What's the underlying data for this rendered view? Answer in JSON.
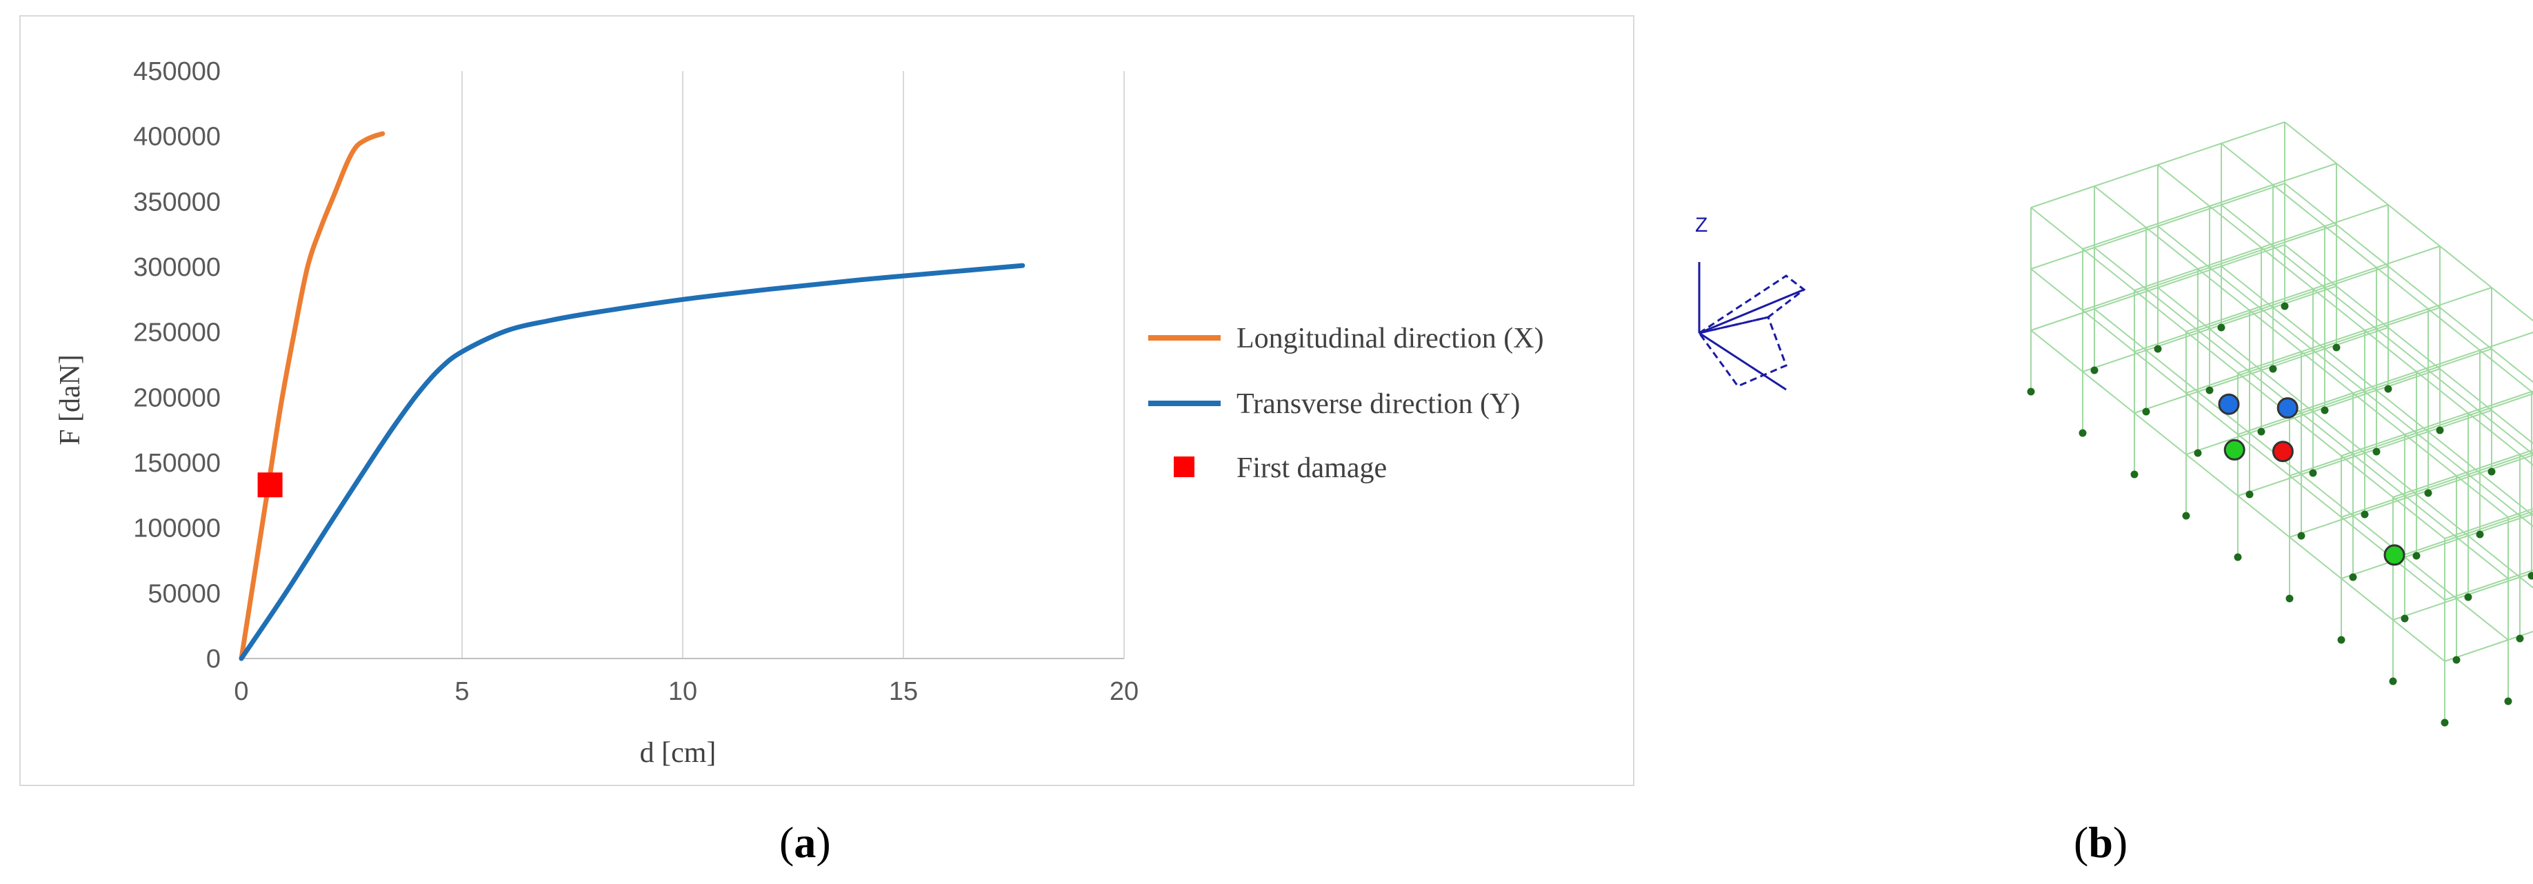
{
  "captions": {
    "a_open": "(",
    "a_letter": "a",
    "a_close": ")",
    "b_open": "(",
    "b_letter": "b",
    "b_close": ")"
  },
  "chart_data": {
    "type": "line",
    "title": "",
    "xlabel": "d [cm]",
    "ylabel": "F [daN]",
    "xlim": [
      0,
      20
    ],
    "ylim": [
      0,
      450000
    ],
    "xticks": [
      0,
      5,
      10,
      15,
      20
    ],
    "yticks": [
      0,
      50000,
      100000,
      150000,
      200000,
      250000,
      300000,
      350000,
      400000,
      450000
    ],
    "grid": "vertical",
    "legend_position": "right",
    "series": [
      {
        "name": "Longitudinal direction (X)",
        "color": "#ED7D31",
        "x": [
          0,
          0.3,
          0.6,
          0.9,
          1.2,
          1.5,
          1.8,
          2.1,
          2.4,
          2.6,
          2.8,
          3.0,
          3.2
        ],
        "y": [
          0,
          65000,
          130000,
          195000,
          250000,
          300000,
          330000,
          355000,
          380000,
          392000,
          397000,
          400000,
          402000
        ]
      },
      {
        "name": "Transverse direction (Y)",
        "color": "#1F6FB5",
        "x": [
          0,
          1,
          2,
          3,
          3.5,
          4,
          4.5,
          5,
          6,
          7,
          8,
          10,
          12,
          14,
          16,
          17.7
        ],
        "y": [
          0,
          50000,
          103000,
          155000,
          180000,
          203000,
          222000,
          235000,
          251000,
          259000,
          265000,
          275000,
          283000,
          290000,
          296000,
          301000
        ]
      }
    ],
    "markers": [
      {
        "name": "First damage",
        "color": "#FF0000",
        "x": 0.65,
        "y": 133000
      }
    ]
  }
}
